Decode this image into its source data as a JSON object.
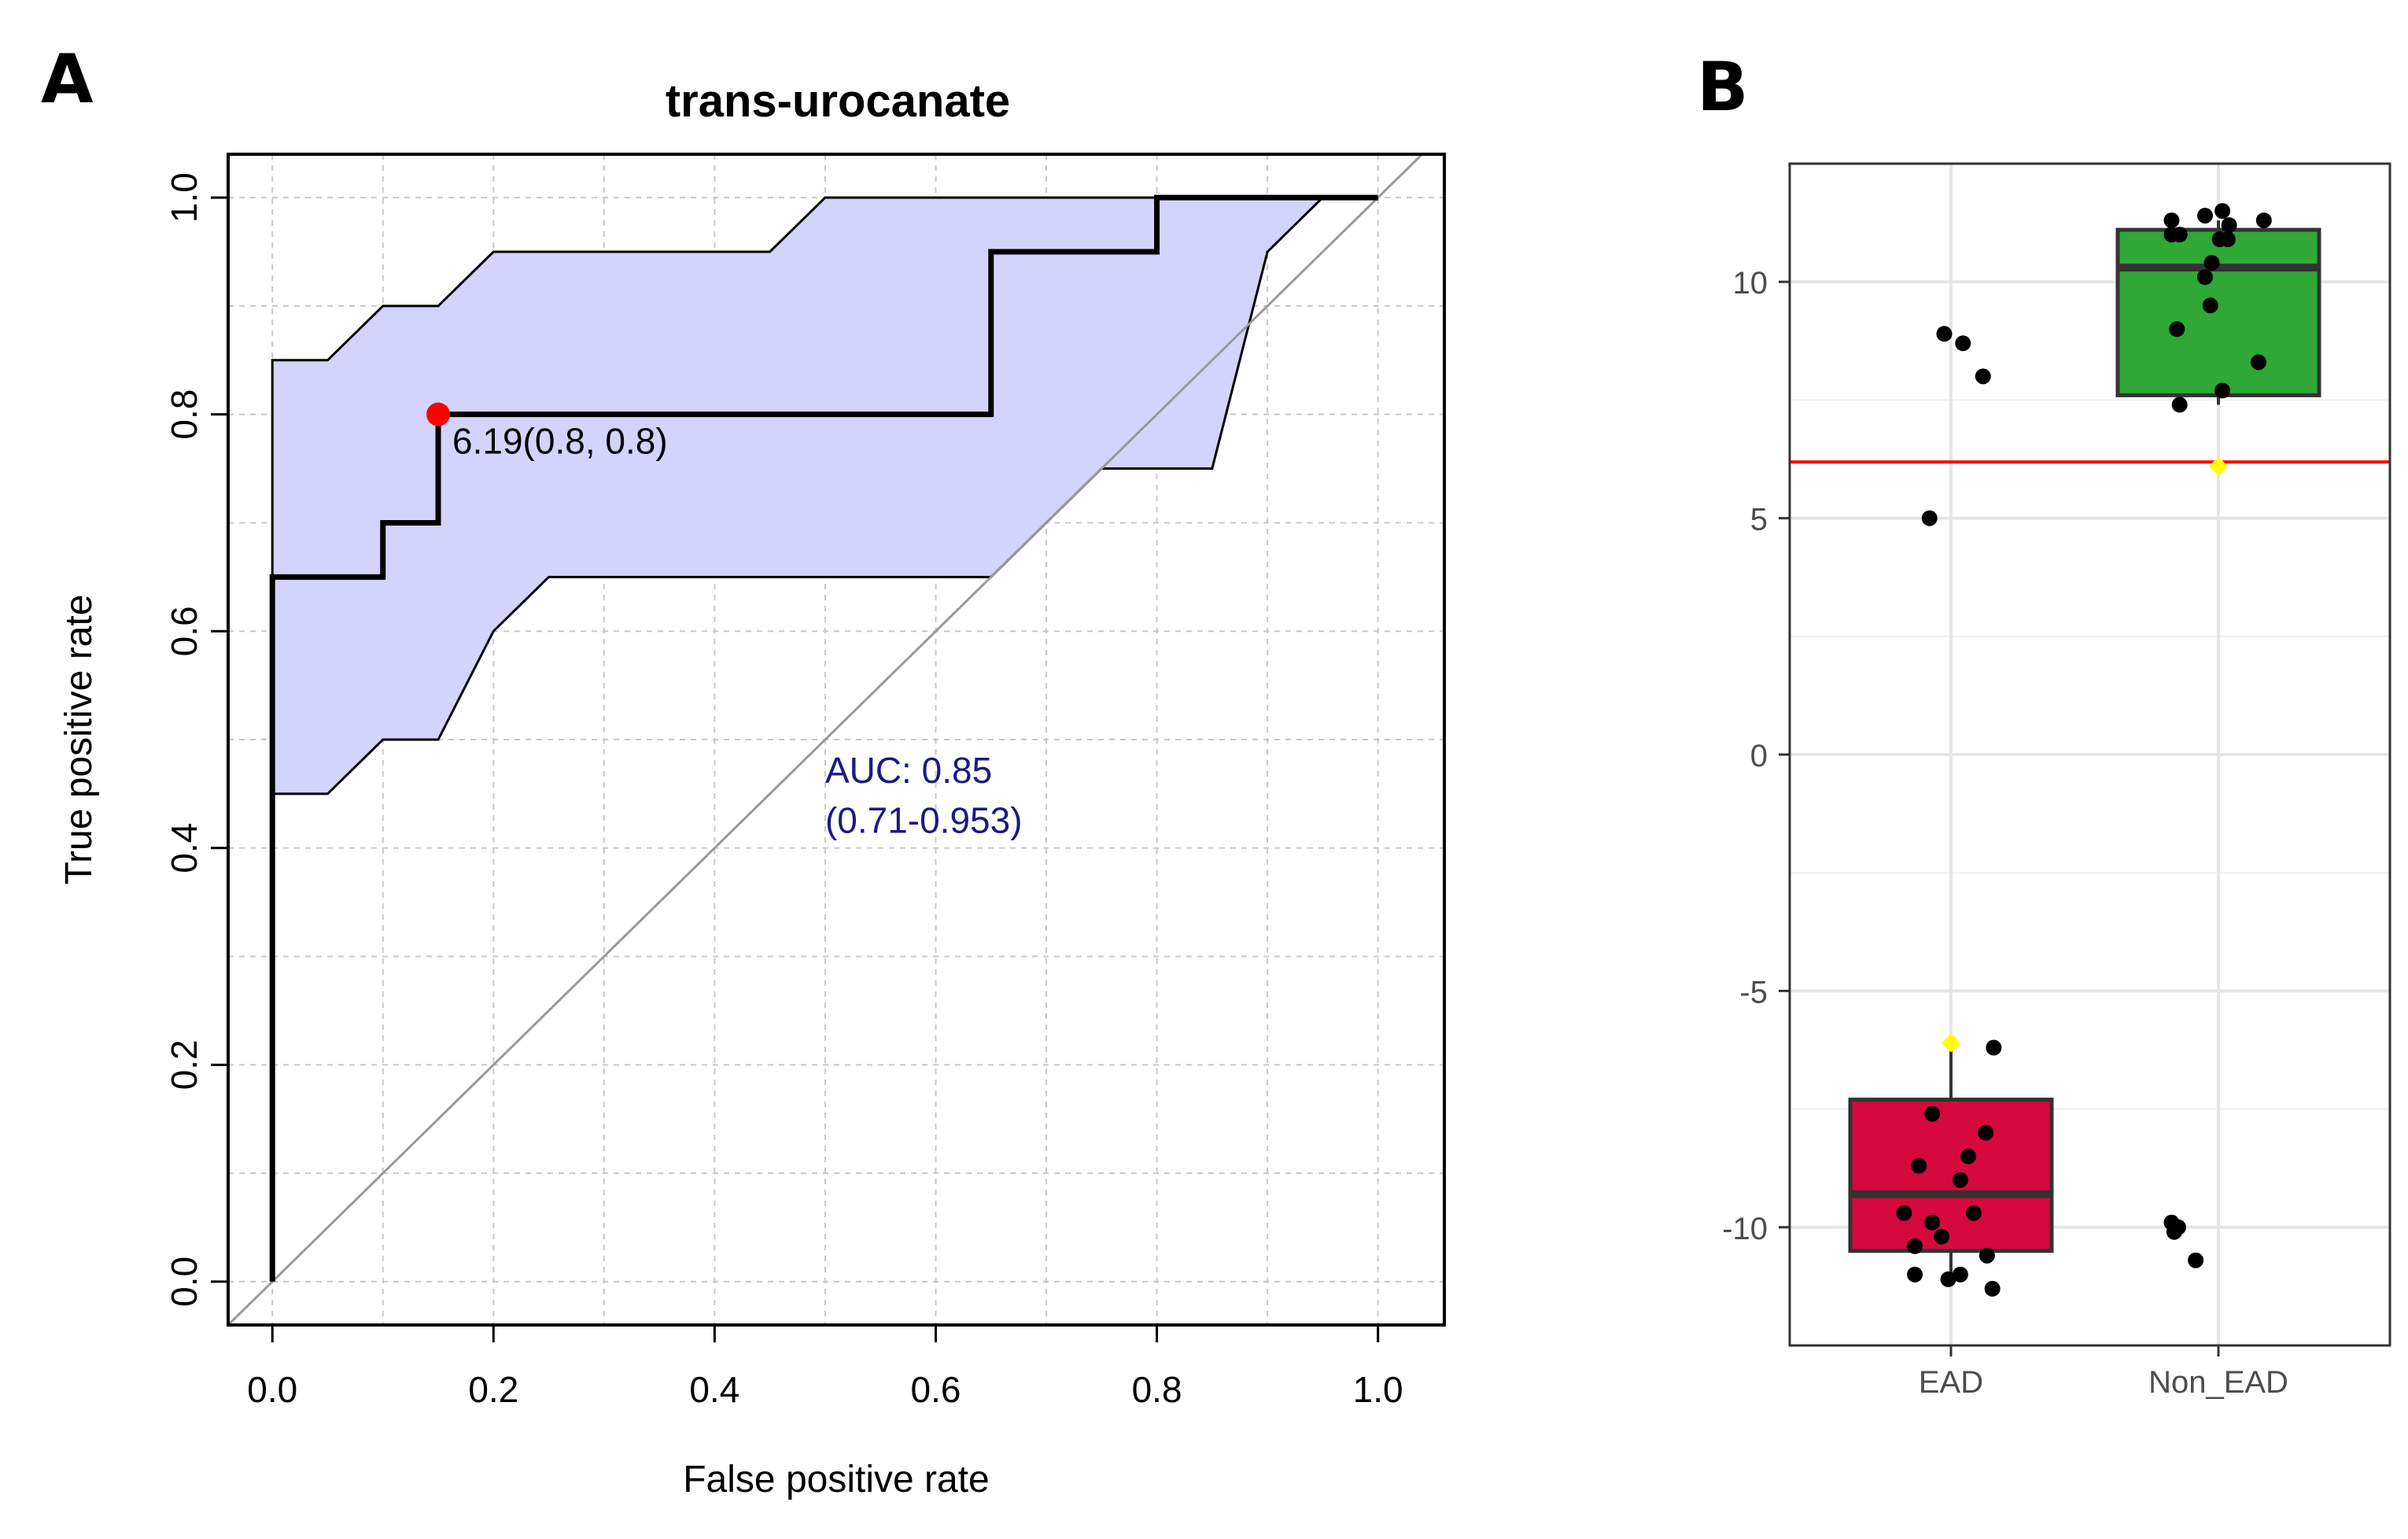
{
  "figure": {
    "panel_a_letter": "A",
    "panel_b_letter": "B"
  },
  "chart_data": [
    {
      "type": "line",
      "panel": "A",
      "title": "trans-urocanate",
      "xlabel": "False positive rate",
      "ylabel": "True positive rate",
      "xlim": [
        -0.04,
        1.06
      ],
      "ylim": [
        -0.04,
        1.04
      ],
      "xticks": [
        "0.0",
        "0.2",
        "0.4",
        "0.6",
        "0.8",
        "1.0"
      ],
      "yticks": [
        "0.0",
        "0.2",
        "0.4",
        "0.6",
        "0.8",
        "1.0"
      ],
      "grid": true,
      "roc_curve": {
        "x": [
          0,
          0,
          0.1,
          0.1,
          0.15,
          0.15,
          0.65,
          0.65,
          0.8,
          0.8,
          1.0
        ],
        "y": [
          0,
          0.65,
          0.65,
          0.7,
          0.7,
          0.8,
          0.8,
          0.95,
          0.95,
          1.0,
          1.0
        ]
      },
      "ci_upper": {
        "x": [
          0,
          0.05,
          0.1,
          0.15,
          0.2,
          0.45,
          0.5,
          0.95
        ],
        "y": [
          0.85,
          0.85,
          0.9,
          0.9,
          0.95,
          0.95,
          1.0,
          1.0
        ]
      },
      "ci_lower": {
        "x": [
          0,
          0.05,
          0.1,
          0.15,
          0.2,
          0.25,
          0.65,
          0.75,
          0.85,
          0.9,
          0.95
        ],
        "y": [
          0.45,
          0.45,
          0.5,
          0.5,
          0.6,
          0.65,
          0.65,
          0.75,
          0.75,
          0.95,
          1.0
        ]
      },
      "diagonal": {
        "x": [
          -0.04,
          1.04
        ],
        "y": [
          -0.04,
          1.04
        ]
      },
      "best_point": {
        "x": 0.15,
        "y": 0.8,
        "label": "6.19(0.8, 0.8)"
      },
      "auc_label": "AUC: 0.85",
      "auc_ci_label": "(0.71-0.953)",
      "colors": {
        "ci_fill": "#d3d3fb",
        "curve": "#000000",
        "diagonal": "#999999",
        "best_point": "#ff0000",
        "auc_text": "#1a1a80"
      }
    },
    {
      "type": "box",
      "panel": "B",
      "categories": [
        "EAD",
        "Non_EAD"
      ],
      "ylim": [
        -12.5,
        12.5
      ],
      "yticks": [
        "-10",
        "-5",
        "0",
        "5",
        "10"
      ],
      "ytick_values": [
        -10,
        -5,
        0,
        5,
        10
      ],
      "grid": true,
      "threshold": 6.19,
      "boxes": [
        {
          "category": "EAD",
          "q1": -10.5,
          "median": -9.3,
          "q3": -7.3,
          "whisker_low": -11.2,
          "whisker_high": -6.1,
          "mean": -6.1,
          "color": "#d5093e"
        },
        {
          "category": "Non_EAD",
          "q1": 7.6,
          "median": 10.3,
          "q3": 11.1,
          "whisker_low": 7.4,
          "whisker_high": 11.3,
          "mean": 6.1,
          "color": "#2fa836"
        }
      ],
      "points": {
        "EAD": [
          [
            -0.35,
            -9.7
          ],
          [
            -0.27,
            -10.4
          ],
          [
            -0.27,
            -11.0
          ],
          [
            -0.24,
            -8.7
          ],
          [
            -0.14,
            -9.9
          ],
          [
            -0.14,
            -7.6
          ],
          [
            -0.07,
            -10.2
          ],
          [
            -0.02,
            -11.1
          ],
          [
            0.07,
            -9.0
          ],
          [
            0.07,
            -11.0
          ],
          [
            0.13,
            -8.5
          ],
          [
            0.17,
            -9.7
          ],
          [
            0.26,
            -8.0
          ],
          [
            0.27,
            -10.6
          ],
          [
            0.31,
            -11.3
          ],
          [
            0.32,
            -6.2
          ],
          [
            -0.16,
            5.0
          ],
          [
            -0.05,
            8.9
          ],
          [
            0.09,
            8.7
          ],
          [
            0.24,
            8.0
          ]
        ],
        "Non_EAD": [
          [
            -0.35,
            -9.9
          ],
          [
            -0.33,
            -10.1
          ],
          [
            -0.3,
            -10.0
          ],
          [
            -0.17,
            -10.7
          ],
          [
            -0.35,
            11.3
          ],
          [
            -0.35,
            11.0
          ],
          [
            -0.31,
            9.0
          ],
          [
            -0.29,
            11.0
          ],
          [
            -0.29,
            7.4
          ],
          [
            -0.1,
            11.4
          ],
          [
            -0.1,
            10.1
          ],
          [
            -0.05,
            10.4
          ],
          [
            -0.06,
            9.5
          ],
          [
            0.01,
            10.9
          ],
          [
            0.03,
            7.7
          ],
          [
            0.03,
            11.5
          ],
          [
            0.07,
            10.9
          ],
          [
            0.08,
            11.2
          ],
          [
            0.3,
            8.3
          ],
          [
            0.34,
            11.3
          ]
        ]
      },
      "colors": {
        "threshold_line": "#ff0000",
        "mean_marker": "#ffff00",
        "points": "#000000",
        "grid": "#e5e5e5"
      }
    }
  ]
}
